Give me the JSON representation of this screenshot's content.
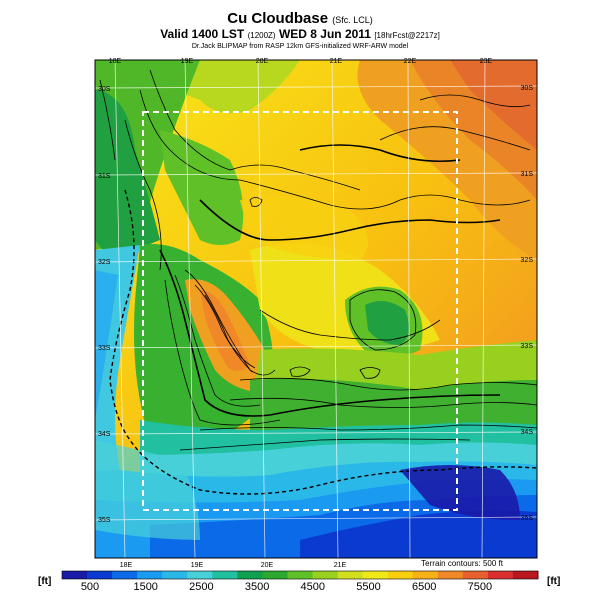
{
  "title": {
    "main": "Cu Cloudbase",
    "main_suffix": "(Sfc. LCL)",
    "valid": "Valid 1400 LST",
    "valid_code": "(1200Z)",
    "valid_date": "WED 8 Jun 2011",
    "forecast": "[18hrFcst@2217z]",
    "model": "Dr.Jack BLIPMAP from RASP 12km GFS-initialized WRF-ARW model"
  },
  "map": {
    "lon_top": [
      "18E",
      "19E",
      "20E",
      "21E",
      "22E",
      "23E"
    ],
    "lon_bottom": [
      "18E",
      "19E",
      "20E",
      "21E"
    ],
    "lat_left": [
      "30S",
      "31S",
      "32S",
      "33S",
      "34S",
      "35S"
    ],
    "lat_right": [
      "30S",
      "31S",
      "32S",
      "33S",
      "34S",
      "35S"
    ],
    "terrain_note": "Terrain contours: 500 ft"
  },
  "colorbar": {
    "unit_left": "[ft]",
    "unit_right": "[ft]",
    "ticks": [
      "500",
      "1500",
      "2500",
      "3500",
      "4500",
      "5500",
      "6500",
      "7500"
    ],
    "colors": [
      "#1a1aa8",
      "#0a3ad0",
      "#0a6ae8",
      "#1a9af0",
      "#2ab8e8",
      "#48d0d8",
      "#20c0a0",
      "#10a050",
      "#2aa830",
      "#60c028",
      "#98d020",
      "#d0e020",
      "#f0e818",
      "#f8d010",
      "#f8b018",
      "#f08828",
      "#e86030",
      "#d83030",
      "#b81820"
    ]
  }
}
